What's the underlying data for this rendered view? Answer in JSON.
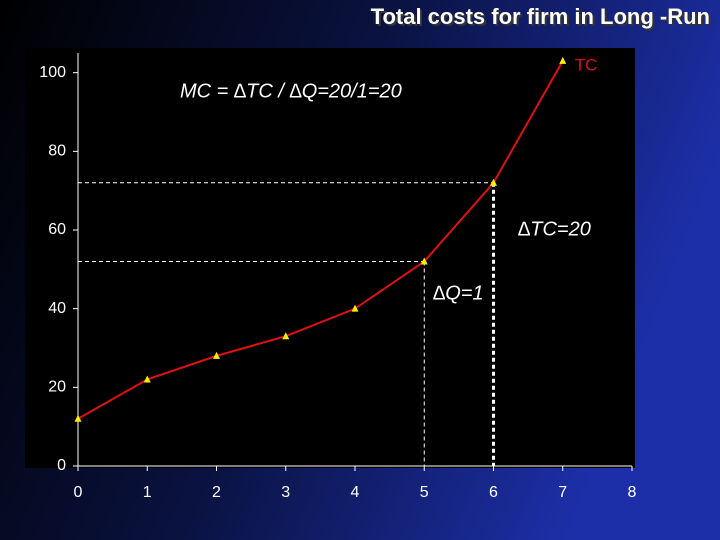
{
  "chart_data": {
    "type": "line",
    "title": "Total costs for firm in Long -Run",
    "x": [
      0,
      1,
      2,
      3,
      4,
      5,
      6,
      7
    ],
    "series": [
      {
        "name": "TC",
        "color": "#e01010",
        "marker_color": "#ffee00",
        "values": [
          12,
          22,
          28,
          33,
          40,
          52,
          72,
          103
        ]
      }
    ],
    "xlim": [
      0,
      8
    ],
    "xticks": [
      0,
      1,
      2,
      3,
      4,
      5,
      6,
      7,
      8
    ],
    "ylim": [
      0,
      105
    ],
    "yticks": [
      0,
      20,
      40,
      60,
      80,
      100
    ],
    "annotations": [
      "MC = ∆TC / ∆Q=20/1=20",
      "∆TC=20",
      "∆Q=1"
    ]
  }
}
